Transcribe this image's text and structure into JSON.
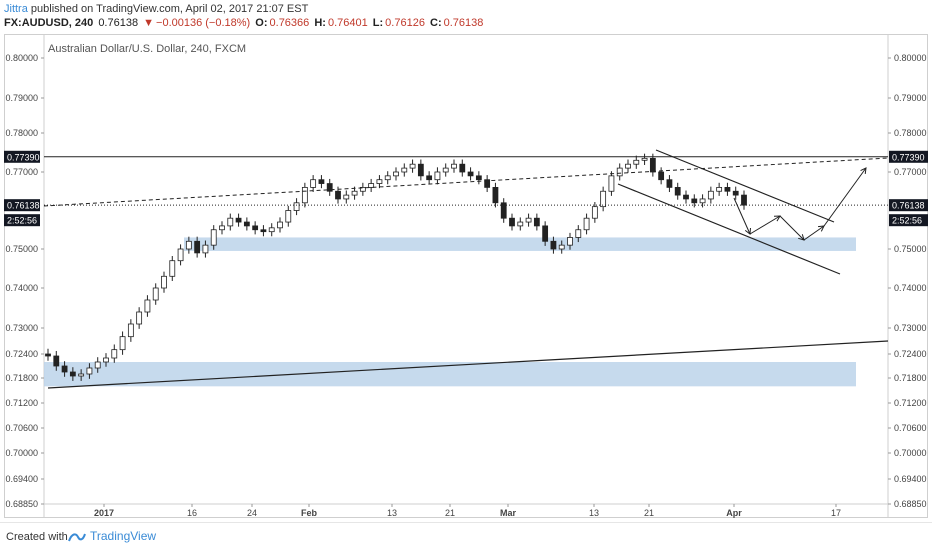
{
  "header": {
    "user": "Jittra",
    "published": "published on TradingView.com, April 02, 2017 21:07 EST",
    "symbol": "FX:AUDUSD, 240",
    "last": "0.76138",
    "change": "−0.00136 (−0.18%)",
    "o_label": "O:",
    "o_val": "0.76366",
    "h_label": "H:",
    "h_val": "0.76401",
    "l_label": "L:",
    "l_val": "0.76126",
    "c_label": "C:",
    "c_val": "0.76138"
  },
  "footer": {
    "created_with": "Created with",
    "brand": "TradingView"
  },
  "chart_data": {
    "type": "candlestick",
    "title": "Australian Dollar/U.S. Dollar, 240, FXCM",
    "y_ticks": [
      "0.80000",
      "0.79000",
      "0.78000",
      "0.77000",
      "0.75000",
      "0.74000",
      "0.73000",
      "0.72400",
      "0.71800",
      "0.71200",
      "0.70600",
      "0.70000",
      "0.69400",
      "0.68850"
    ],
    "x_ticks": [
      "2017",
      "16",
      "24",
      "Feb",
      "13",
      "21",
      "Mar",
      "13",
      "21",
      "Apr",
      "17"
    ],
    "price_labels": [
      {
        "value": "0.77390",
        "style": "dark"
      },
      {
        "value": "0.76138",
        "style": "dark"
      },
      {
        "value": "2:52:56",
        "style": "dark"
      }
    ],
    "support_zones": [
      [
        0.7495,
        0.753
      ],
      [
        0.716,
        0.722
      ]
    ],
    "horizontal_levels": [
      0.7739,
      0.76138
    ],
    "series_close": [
      0.7235,
      0.721,
      0.7195,
      0.7185,
      0.719,
      0.7205,
      0.722,
      0.723,
      0.725,
      0.728,
      0.731,
      0.734,
      0.737,
      0.74,
      0.743,
      0.747,
      0.75,
      0.752,
      0.749,
      0.751,
      0.755,
      0.756,
      0.758,
      0.757,
      0.756,
      0.755,
      0.7545,
      0.7555,
      0.757,
      0.76,
      0.762,
      0.766,
      0.768,
      0.767,
      0.765,
      0.763,
      0.764,
      0.765,
      0.766,
      0.767,
      0.768,
      0.769,
      0.77,
      0.771,
      0.772,
      0.769,
      0.768,
      0.77,
      0.771,
      0.772,
      0.77,
      0.769,
      0.768,
      0.766,
      0.762,
      0.758,
      0.756,
      0.757,
      0.758,
      0.756,
      0.752,
      0.75,
      0.751,
      0.753,
      0.755,
      0.758,
      0.761,
      0.765,
      0.769,
      0.771,
      0.772,
      0.773,
      0.7735,
      0.77,
      0.768,
      0.766,
      0.764,
      0.763,
      0.762,
      0.763,
      0.765,
      0.766,
      0.765,
      0.764,
      0.7614
    ]
  }
}
